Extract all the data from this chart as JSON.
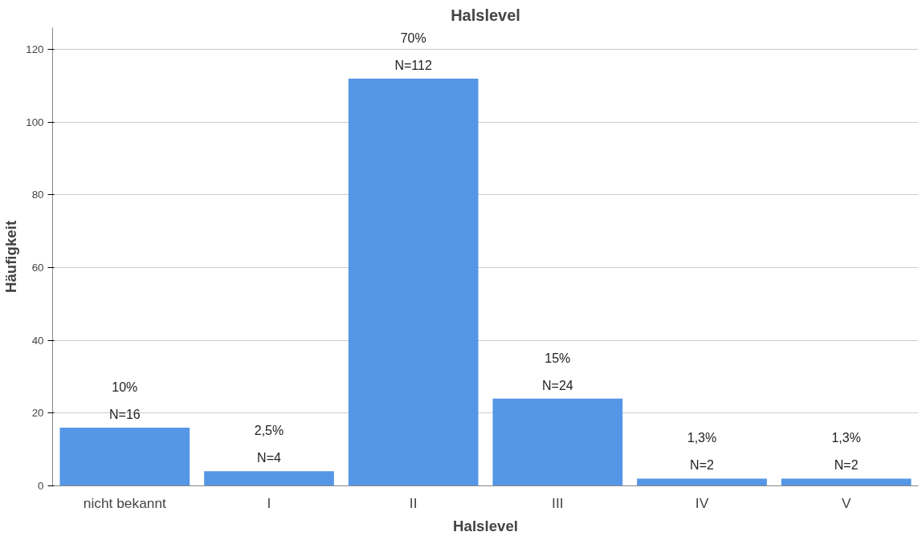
{
  "chart_data": {
    "type": "bar",
    "title": "Halslevel",
    "xlabel": "Halslevel",
    "ylabel": "Häufigkeit",
    "categories": [
      "nicht bekannt",
      "I",
      "II",
      "III",
      "IV",
      "V"
    ],
    "values": [
      16,
      4,
      112,
      24,
      2,
      2
    ],
    "value_labels": [
      "10%\nN=16",
      "2,5%\nN=4",
      "70%\nN=112",
      "15%\nN=24",
      "1,3%\nN=2",
      "1,3%\nN=2"
    ],
    "color": "#5596e6",
    "ylim": [
      0,
      126
    ],
    "yticks": [
      0,
      20,
      40,
      60,
      80,
      100,
      120
    ],
    "grid": "y"
  }
}
